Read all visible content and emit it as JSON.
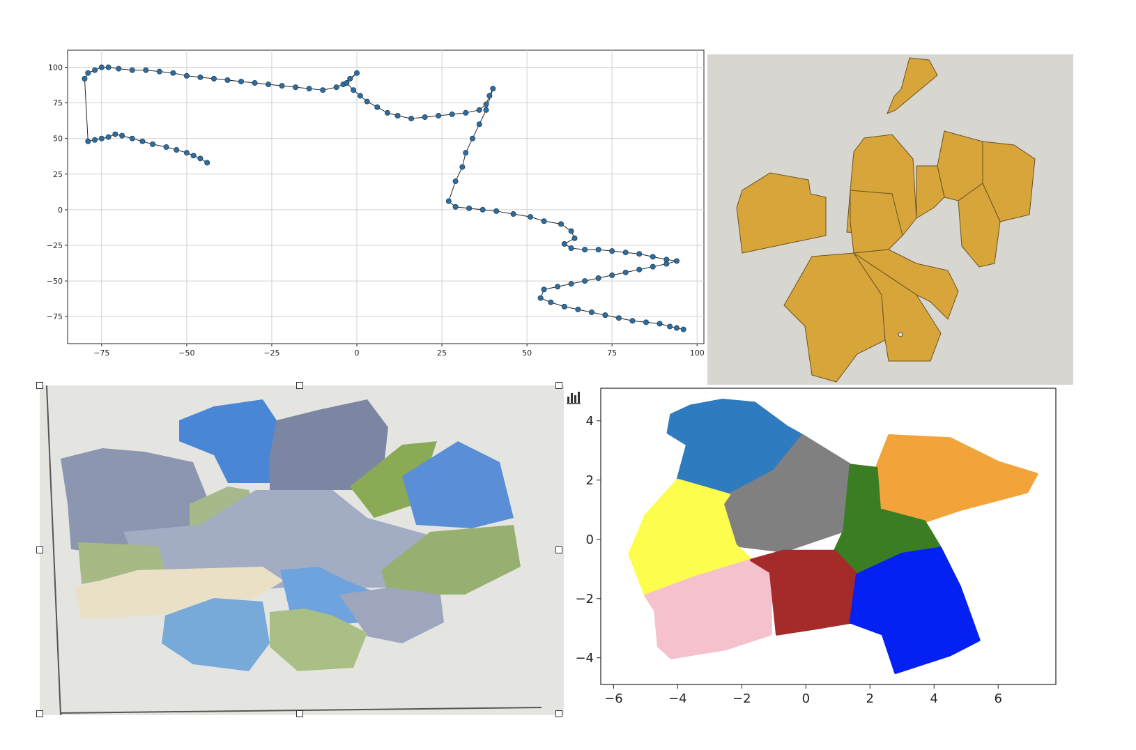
{
  "colors": {
    "line_marker": "#2f6d9c",
    "line": "#222222",
    "polygon_fill": "#d7a53a",
    "polygon_edge": "#6b5220",
    "photo_bg": "#d8d6d0",
    "screen_bg": "#c8ccc8"
  },
  "icons": {
    "chart_button": "bar-chart-icon",
    "selection_handles": "resize-handle-icon"
  },
  "chart_data": [
    {
      "type": "line",
      "title": "",
      "xlabel": "",
      "ylabel": "",
      "xlim": [
        -85,
        102
      ],
      "ylim": [
        -94,
        112
      ],
      "grid": true,
      "xticks": [
        -75,
        -50,
        -25,
        0,
        25,
        50,
        75,
        100
      ],
      "yticks": [
        100,
        75,
        50,
        25,
        0,
        -25,
        -50,
        -75
      ],
      "xtick_labels": [
        "−75",
        "−50",
        "−25",
        "0",
        "25",
        "50",
        "75",
        "100"
      ],
      "ytick_labels": [
        "100",
        "75",
        "50",
        "25",
        "0",
        "−25",
        "−50",
        "−75"
      ],
      "series": [
        {
          "x": [
            -44,
            -46,
            -48,
            -50,
            -53,
            -56,
            -60,
            -63,
            -66,
            -69,
            -71,
            -73,
            -75,
            -77,
            -79,
            -80,
            -79,
            -77,
            -75,
            -73,
            -70,
            -66,
            -62,
            -58,
            -54,
            -50,
            -46,
            -42,
            -38,
            -34,
            -30,
            -26,
            -22,
            -18,
            -14,
            -10,
            -6,
            -4,
            -2,
            0,
            -3,
            -1,
            1,
            3,
            6,
            9,
            12,
            16,
            20,
            24,
            28,
            32,
            36,
            38,
            39,
            40,
            38,
            36,
            34,
            32,
            31,
            29,
            27,
            29,
            33,
            37,
            41,
            46,
            51,
            55,
            60,
            63,
            64,
            61,
            63,
            67,
            71,
            75,
            79,
            83,
            87,
            91,
            94,
            91,
            87,
            83,
            79,
            75,
            71,
            67,
            63,
            59,
            55,
            54,
            57,
            61,
            65,
            69,
            73,
            77,
            81,
            85,
            89,
            92,
            94,
            96
          ],
          "y": [
            33,
            36,
            38,
            40,
            42,
            44,
            46,
            48,
            50,
            52,
            53,
            51,
            50,
            49,
            48,
            92,
            96,
            98,
            100,
            100,
            99,
            98,
            98,
            97,
            96,
            94,
            93,
            92,
            91,
            90,
            89,
            88,
            87,
            86,
            85,
            84,
            86,
            88,
            92,
            96,
            89,
            84,
            80,
            76,
            72,
            68,
            66,
            64,
            65,
            66,
            67,
            68,
            70,
            74,
            80,
            85,
            70,
            60,
            50,
            40,
            30,
            20,
            6,
            2,
            1,
            0,
            -1,
            -3,
            -5,
            -8,
            -10,
            -15,
            -20,
            -24,
            -27,
            -28,
            -28,
            -29,
            -30,
            -31,
            -33,
            -35,
            -36,
            -38,
            -40,
            -42,
            -44,
            -46,
            -48,
            -50,
            -52,
            -54,
            -56,
            -62,
            -65,
            -68,
            -70,
            -72,
            -74,
            -76,
            -78,
            -79,
            -80,
            -82,
            -83,
            -84
          ]
        }
      ]
    },
    {
      "type": "scatter",
      "title": "",
      "xlabel": "",
      "ylabel": "",
      "xlim": [
        -6.4,
        7.8
      ],
      "ylim": [
        -4.9,
        5.1
      ],
      "grid": false,
      "xticks": [
        -6,
        -4,
        -2,
        0,
        2,
        4,
        6
      ],
      "yticks": [
        4,
        2,
        0,
        -2,
        -4
      ],
      "xtick_labels": [
        "−6",
        "−4",
        "−2",
        "0",
        "2",
        "4",
        "6"
      ],
      "ytick_labels": [
        "4",
        "2",
        "0",
        "−2",
        "−4"
      ],
      "series": [
        {
          "color": "#2f7bbf",
          "polygon": [
            [
              -4.2,
              4.2
            ],
            [
              -3.6,
              4.5
            ],
            [
              -2.6,
              4.7
            ],
            [
              -1.6,
              4.6
            ],
            [
              -0.6,
              3.8
            ],
            [
              -0.1,
              3.5
            ],
            [
              -1.0,
              2.3
            ],
            [
              -2.4,
              1.5
            ],
            [
              -4.0,
              2.0
            ],
            [
              -3.7,
              3.2
            ],
            [
              -4.3,
              3.6
            ]
          ]
        },
        {
          "color": "#808080",
          "polygon": [
            [
              -0.1,
              3.5
            ],
            [
              1.4,
              2.5
            ],
            [
              1.2,
              0.3
            ],
            [
              -0.7,
              -0.4
            ],
            [
              -2.2,
              -0.2
            ],
            [
              -2.6,
              1.2
            ],
            [
              -2.4,
              1.5
            ],
            [
              -1.0,
              2.3
            ]
          ]
        },
        {
          "color": "#f2a33a",
          "polygon": [
            [
              2.6,
              3.5
            ],
            [
              4.5,
              3.4
            ],
            [
              6.0,
              2.6
            ],
            [
              7.2,
              2.2
            ],
            [
              6.9,
              1.6
            ],
            [
              4.8,
              1.0
            ],
            [
              3.7,
              0.6
            ],
            [
              2.3,
              1.0
            ],
            [
              2.2,
              2.4
            ]
          ]
        },
        {
          "color": "#fdfd4e",
          "polygon": [
            [
              -4.0,
              2.0
            ],
            [
              -2.4,
              1.5
            ],
            [
              -2.6,
              1.2
            ],
            [
              -2.2,
              -0.2
            ],
            [
              -1.7,
              -0.7
            ],
            [
              -3.5,
              -1.3
            ],
            [
              -5.0,
              -1.9
            ],
            [
              -5.5,
              -0.5
            ],
            [
              -5.0,
              0.8
            ]
          ]
        },
        {
          "color": "#3a7d22",
          "polygon": [
            [
              1.4,
              2.5
            ],
            [
              2.2,
              2.4
            ],
            [
              2.3,
              1.0
            ],
            [
              3.7,
              0.6
            ],
            [
              4.2,
              -0.3
            ],
            [
              3.0,
              -0.5
            ],
            [
              1.6,
              -1.2
            ],
            [
              0.9,
              -0.4
            ],
            [
              1.2,
              0.3
            ]
          ]
        },
        {
          "color": "#f4c1cd",
          "polygon": [
            [
              -5.0,
              -1.9
            ],
            [
              -3.5,
              -1.3
            ],
            [
              -1.7,
              -0.7
            ],
            [
              -1.1,
              -1.1
            ],
            [
              -1.1,
              -3.2
            ],
            [
              -2.5,
              -3.7
            ],
            [
              -4.2,
              -4.0
            ],
            [
              -4.6,
              -3.6
            ],
            [
              -4.7,
              -2.4
            ]
          ]
        },
        {
          "color": "#a52a2a",
          "polygon": [
            [
              -1.7,
              -0.7
            ],
            [
              -0.7,
              -0.4
            ],
            [
              0.9,
              -0.4
            ],
            [
              1.6,
              -1.2
            ],
            [
              1.4,
              -2.8
            ],
            [
              0.3,
              -3.0
            ],
            [
              -0.9,
              -3.2
            ],
            [
              -1.1,
              -1.1
            ]
          ]
        },
        {
          "color": "#0520f2",
          "polygon": [
            [
              1.6,
              -1.2
            ],
            [
              3.0,
              -0.5
            ],
            [
              4.2,
              -0.3
            ],
            [
              4.8,
              -1.6
            ],
            [
              5.4,
              -3.4
            ],
            [
              4.5,
              -3.9
            ],
            [
              2.8,
              -4.5
            ],
            [
              2.4,
              -3.2
            ],
            [
              1.4,
              -2.8
            ]
          ]
        }
      ]
    }
  ]
}
